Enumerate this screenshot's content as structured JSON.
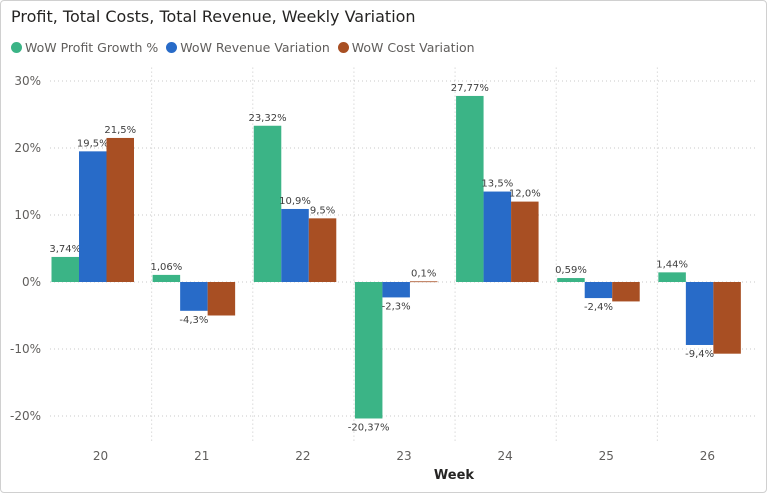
{
  "chart_data": {
    "type": "bar",
    "title": "Profit, Total Costs, Total Revenue, Weekly Variation",
    "xlabel": "Week",
    "ylabel": "",
    "categories": [
      "20",
      "21",
      "22",
      "23",
      "24",
      "25",
      "26"
    ],
    "ylim": [
      -23,
      32
    ],
    "yticks": [
      -20,
      -10,
      0,
      10,
      20,
      30
    ],
    "ytick_labels": [
      "-20%",
      "-10%",
      "0%",
      "10%",
      "20%",
      "30%"
    ],
    "grid": true,
    "legend_position": "top-left",
    "series": [
      {
        "name": "WoW Profit Growth %",
        "color": "#3BB486",
        "values": [
          3.74,
          1.06,
          23.32,
          -20.37,
          27.77,
          0.59,
          1.44
        ],
        "labels": [
          "3,74%",
          "1,06%",
          "23,32%",
          "-20,37%",
          "27,77%",
          "0,59%",
          "1,44%"
        ]
      },
      {
        "name": "WoW Revenue Variation",
        "color": "#286BC8",
        "values": [
          19.5,
          -4.3,
          10.9,
          -2.3,
          13.5,
          -2.4,
          -9.4
        ],
        "labels": [
          "19,5%",
          "-4,3%",
          "10,9%",
          "-2,3%",
          "13,5%",
          "-2,4%",
          "-9,4%"
        ]
      },
      {
        "name": "WoW Cost Variation",
        "color": "#A84F23",
        "values": [
          21.5,
          -5.0,
          9.5,
          0.1,
          12.0,
          -2.9,
          -10.7
        ],
        "labels": [
          "21,5%",
          "",
          "9,5%",
          "0,1%",
          "12,0%",
          "",
          ""
        ]
      }
    ]
  }
}
